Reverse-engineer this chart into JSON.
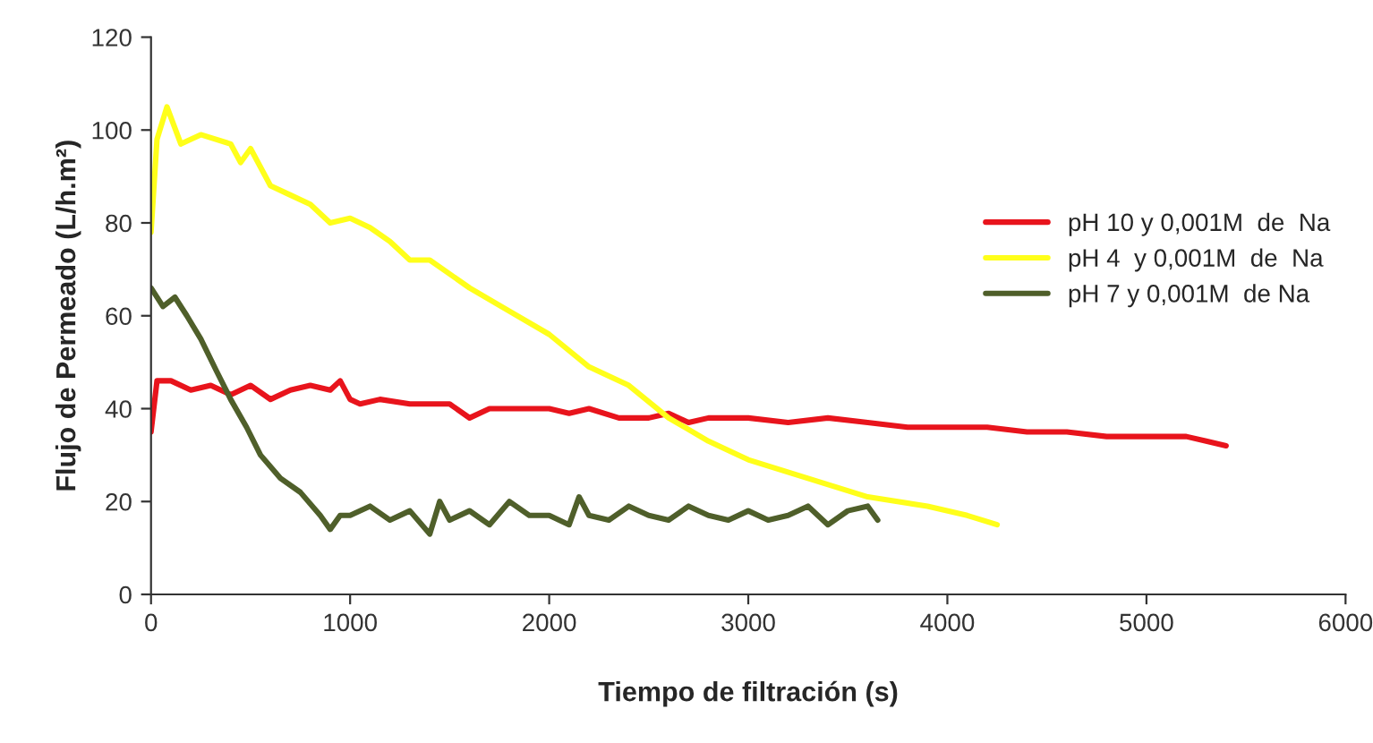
{
  "chart_data": {
    "type": "line",
    "xlabel": "Tiempo de filtración (s)",
    "ylabel": "Flujo de Permeado (L/h.m²)",
    "xlim": [
      0,
      6000
    ],
    "ylim": [
      0,
      120
    ],
    "xticks": [
      0,
      1000,
      2000,
      3000,
      4000,
      5000,
      6000
    ],
    "yticks": [
      0,
      20,
      40,
      60,
      80,
      100,
      120
    ],
    "grid": false,
    "legend": "right",
    "marker": "none",
    "line_style": "solid",
    "series": [
      {
        "name": "pH 10 y 0,001M  de  Na",
        "color": "#e8141c",
        "x": [
          0,
          30,
          100,
          200,
          300,
          400,
          500,
          600,
          700,
          800,
          900,
          950,
          1000,
          1050,
          1150,
          1300,
          1500,
          1600,
          1700,
          1800,
          2000,
          2100,
          2200,
          2350,
          2500,
          2600,
          2700,
          2800,
          3000,
          3200,
          3400,
          3600,
          3800,
          4000,
          4200,
          4400,
          4600,
          4800,
          5000,
          5200,
          5300,
          5400
        ],
        "values": [
          35,
          46,
          46,
          44,
          45,
          43,
          45,
          42,
          44,
          45,
          44,
          46,
          42,
          41,
          42,
          41,
          41,
          38,
          40,
          40,
          40,
          39,
          40,
          38,
          38,
          39,
          37,
          38,
          38,
          37,
          38,
          37,
          36,
          36,
          36,
          35,
          35,
          34,
          34,
          34,
          33,
          32
        ]
      },
      {
        "name": "pH 4  y 0,001M  de  Na",
        "color": "#ffff1a",
        "x": [
          0,
          30,
          80,
          150,
          250,
          400,
          450,
          500,
          600,
          700,
          800,
          900,
          1000,
          1100,
          1200,
          1300,
          1400,
          1600,
          1800,
          2000,
          2200,
          2400,
          2600,
          2800,
          3000,
          3300,
          3600,
          3900,
          4100,
          4250
        ],
        "values": [
          78,
          98,
          105,
          97,
          99,
          97,
          93,
          96,
          88,
          86,
          84,
          80,
          81,
          79,
          76,
          72,
          72,
          66,
          61,
          56,
          49,
          45,
          38,
          33,
          29,
          25,
          21,
          19,
          17,
          15
        ]
      },
      {
        "name": "pH 7 y 0,001M  de Na",
        "color": "#4f5f2a",
        "x": [
          0,
          60,
          120,
          180,
          250,
          330,
          400,
          480,
          550,
          650,
          750,
          850,
          900,
          950,
          1000,
          1100,
          1200,
          1300,
          1400,
          1450,
          1500,
          1600,
          1700,
          1800,
          1900,
          2000,
          2100,
          2150,
          2200,
          2300,
          2400,
          2500,
          2600,
          2700,
          2800,
          2900,
          3000,
          3100,
          3200,
          3300,
          3400,
          3500,
          3600,
          3650
        ],
        "values": [
          66,
          62,
          64,
          60,
          55,
          48,
          42,
          36,
          30,
          25,
          22,
          17,
          14,
          17,
          17,
          19,
          16,
          18,
          13,
          20,
          16,
          18,
          15,
          20,
          17,
          17,
          15,
          21,
          17,
          16,
          19,
          17,
          16,
          19,
          17,
          16,
          18,
          16,
          17,
          19,
          15,
          18,
          19,
          16
        ]
      }
    ]
  }
}
